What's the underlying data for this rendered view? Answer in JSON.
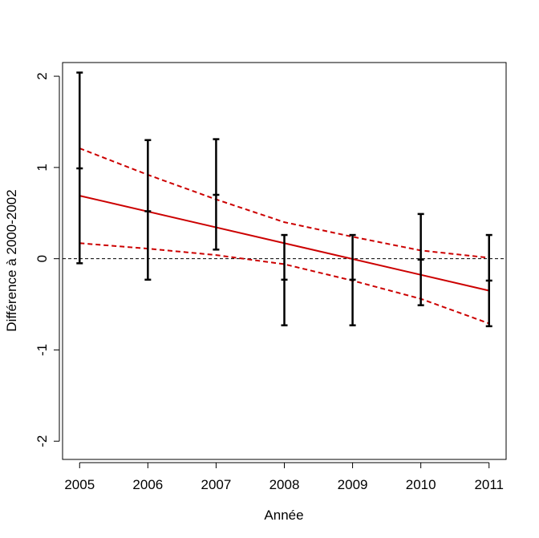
{
  "chart_data": {
    "type": "line",
    "title": "",
    "xlabel": "Année",
    "ylabel": "Différence à 2000-2002",
    "x_ticks": [
      "2005",
      "2006",
      "2007",
      "2008",
      "2009",
      "2010",
      "2011"
    ],
    "y_ticks": [
      "-2",
      "-1",
      "0",
      "1",
      "2"
    ],
    "xlim": [
      2004.75,
      2011.25
    ],
    "ylim": [
      -2.2,
      2.15
    ],
    "grid": false,
    "reference_line": {
      "y": 0,
      "style": "dashed",
      "color": "#000000"
    },
    "observations": {
      "style": "error bars with center tick",
      "color": "#000000",
      "x": [
        2005,
        2006,
        2007,
        2008,
        2009,
        2010,
        2011
      ],
      "center": [
        0.99,
        0.52,
        0.7,
        -0.23,
        -0.23,
        -0.01,
        -0.24
      ],
      "lower": [
        -0.05,
        -0.23,
        0.1,
        -0.73,
        -0.73,
        -0.51,
        -0.74
      ],
      "upper": [
        2.04,
        1.3,
        1.31,
        0.26,
        0.26,
        0.49,
        0.26
      ]
    },
    "series": [
      {
        "role": "fit",
        "color": "#cc0000",
        "style": "solid",
        "x": [
          2005,
          2011
        ],
        "y": [
          0.69,
          -0.35
        ]
      },
      {
        "role": "upper confidence band",
        "color": "#cc0000",
        "style": "dashed",
        "x": [
          2005,
          2006,
          2007,
          2008,
          2009,
          2010,
          2011
        ],
        "y": [
          1.21,
          0.92,
          0.65,
          0.4,
          0.24,
          0.09,
          0.01
        ]
      },
      {
        "role": "lower confidence band",
        "color": "#cc0000",
        "style": "dashed",
        "x": [
          2005,
          2006,
          2007,
          2008,
          2009,
          2010,
          2011
        ],
        "y": [
          0.17,
          0.11,
          0.04,
          -0.06,
          -0.24,
          -0.44,
          -0.71
        ]
      }
    ]
  }
}
